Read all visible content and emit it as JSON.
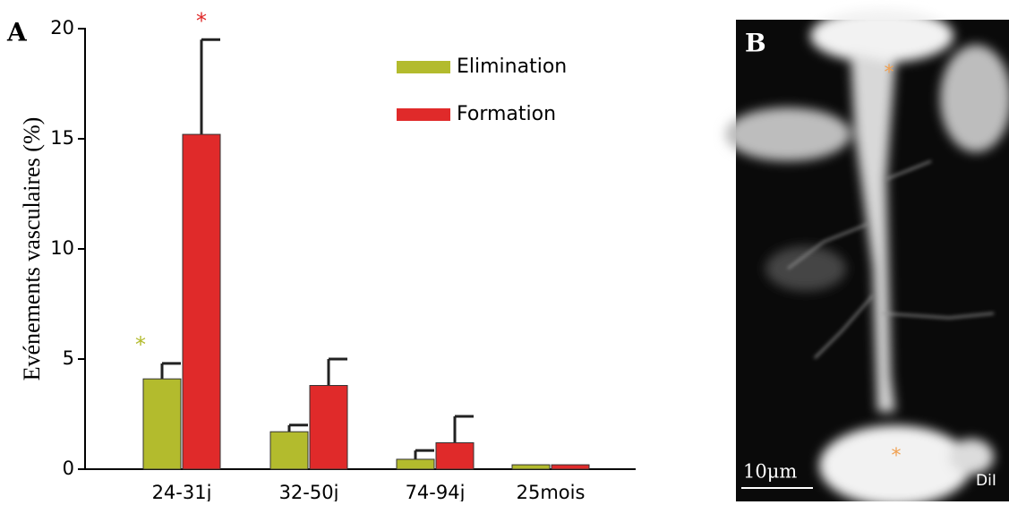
{
  "panel_a_label": "A",
  "chart_data": {
    "type": "bar",
    "ylabel": "Evénements vasculaires (%)",
    "categories": [
      "24-31j",
      "32-50j",
      "74-94j",
      "25mois"
    ],
    "series": [
      {
        "name": "Elimination",
        "color": "#b3bb2d",
        "values": [
          4.1,
          1.7,
          0.45,
          0.2
        ],
        "errors": [
          0.7,
          0.3,
          0.4,
          null
        ]
      },
      {
        "name": "Formation",
        "color": "#e02a2a",
        "values": [
          15.2,
          3.8,
          1.2,
          0.2
        ],
        "errors": [
          4.3,
          1.2,
          1.2,
          null
        ]
      }
    ],
    "annotations": [
      {
        "text": "*",
        "category": 0,
        "series": 0,
        "color": "#b3bb2d"
      },
      {
        "text": "*",
        "category": 0,
        "series": 1,
        "color": "#e02a2a"
      }
    ],
    "ylim": [
      0,
      20
    ],
    "yticks": [
      0,
      5,
      10,
      15,
      20
    ],
    "legend": "upper right"
  },
  "panel_b": {
    "label": "B",
    "scale_bar": "10μm",
    "stain": "DiI",
    "markers": [
      "*",
      "*"
    ]
  }
}
